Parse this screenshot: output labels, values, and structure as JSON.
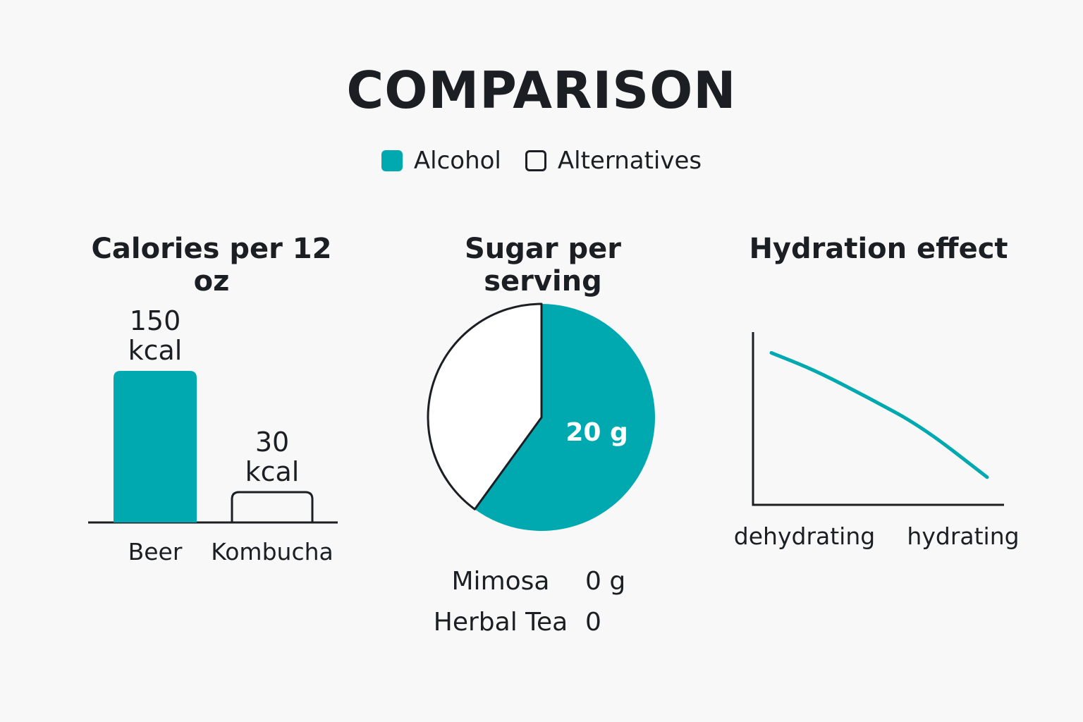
{
  "title": "COMPARISON",
  "legend": {
    "items": [
      {
        "label": "Alcohol",
        "style": "filled"
      },
      {
        "label": "Alternatives",
        "style": "outline"
      }
    ]
  },
  "colors": {
    "accent": "#00a9b0",
    "ink": "#1b1f24",
    "background": "#f8f8f8"
  },
  "chart_data": [
    {
      "type": "bar",
      "title": "Calories per 12 oz",
      "categories": [
        "Beer",
        "Kombucha"
      ],
      "values": [
        150,
        30
      ],
      "value_labels": [
        [
          "150",
          "kcal"
        ],
        [
          "30",
          "kcal"
        ]
      ],
      "styles": [
        "filled",
        "outline"
      ]
    },
    {
      "type": "pie",
      "title": "Sugar per serving",
      "slices": [
        {
          "label": "20 g",
          "value": 60,
          "style": "filled"
        },
        {
          "label": "",
          "value": 40,
          "style": "outline"
        }
      ],
      "table": [
        {
          "name": "Mimosa",
          "value": "0 g"
        },
        {
          "name": "Herbal Tea",
          "value": "0"
        }
      ]
    },
    {
      "type": "line",
      "title": "Hydration effect",
      "x_labels": [
        "dehydrating",
        "hydrating"
      ],
      "points": [
        [
          0,
          0.88
        ],
        [
          0.2,
          0.78
        ],
        [
          0.45,
          0.62
        ],
        [
          0.7,
          0.45
        ],
        [
          1,
          0.16
        ]
      ]
    }
  ]
}
